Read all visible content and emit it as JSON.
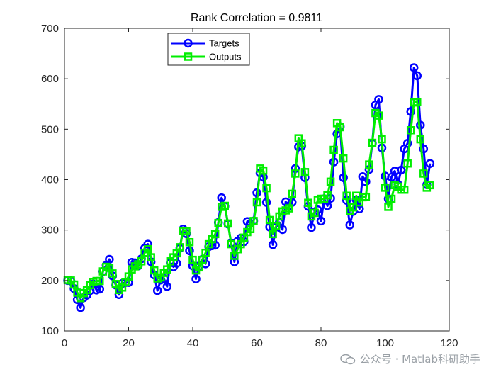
{
  "chart_data": {
    "type": "line",
    "title": "Rank Correlation = 0.9811",
    "xlabel": "",
    "ylabel": "",
    "xlim": [
      0,
      120
    ],
    "ylim": [
      100,
      700
    ],
    "xticks": [
      0,
      20,
      40,
      60,
      80,
      100,
      120
    ],
    "yticks": [
      100,
      200,
      300,
      400,
      500,
      600,
      700
    ],
    "legend_position": "top-left",
    "grid": false,
    "series": [
      {
        "name": "Targets",
        "color": "#0000ff",
        "marker": "circle",
        "values": [
          200,
          199,
          184,
          162,
          146,
          166,
          171,
          180,
          193,
          181,
          183,
          218,
          230,
          242,
          209,
          191,
          172,
          194,
          196,
          196,
          236,
          235,
          229,
          243,
          264,
          272,
          237,
          211,
          180,
          201,
          204,
          188,
          235,
          227,
          234,
          264,
          302,
          293,
          259,
          229,
          203,
          229,
          242,
          233,
          267,
          269,
          270,
          315,
          364,
          347,
          312,
          274,
          237,
          278,
          284,
          277,
          317,
          313,
          318,
          374,
          413,
          405,
          355,
          306,
          271,
          306,
          315,
          301,
          356,
          348,
          355,
          422,
          465,
          467,
          404,
          347,
          305,
          336,
          340,
          318,
          362,
          348,
          363,
          435,
          491,
          505,
          404,
          359,
          310,
          337,
          360,
          342,
          406,
          396,
          420,
          472,
          548,
          559,
          463,
          407,
          362,
          405,
          417,
          391,
          419,
          461,
          472,
          535,
          622,
          606,
          508,
          461,
          390,
          432
        ]
      },
      {
        "name": "Outputs",
        "color": "#00ee00",
        "marker": "square",
        "values": [
          201,
          200,
          192,
          176,
          165,
          175,
          181,
          191,
          197,
          199,
          199,
          218,
          227,
          225,
          214,
          193,
          181,
          186,
          197,
          208,
          222,
          228,
          232,
          238,
          255,
          262,
          246,
          220,
          204,
          206,
          215,
          222,
          238,
          246,
          254,
          266,
          298,
          298,
          276,
          241,
          220,
          226,
          241,
          255,
          272,
          282,
          292,
          314,
          346,
          348,
          313,
          272,
          249,
          262,
          272,
          285,
          296,
          302,
          318,
          355,
          422,
          418,
          383,
          320,
          292,
          308,
          327,
          337,
          339,
          343,
          372,
          412,
          482,
          472,
          415,
          354,
          327,
          334,
          360,
          362,
          362,
          369,
          396,
          459,
          512,
          504,
          442,
          368,
          338,
          345,
          368,
          355,
          365,
          366,
          430,
          473,
          532,
          527,
          480,
          384,
          346,
          362,
          389,
          386,
          380,
          380,
          432,
          498,
          553,
          554,
          480,
          412,
          384,
          389
        ]
      }
    ]
  },
  "watermark": {
    "text": "公众号 · Matlab科研助手",
    "icon": "wechat-icon"
  }
}
